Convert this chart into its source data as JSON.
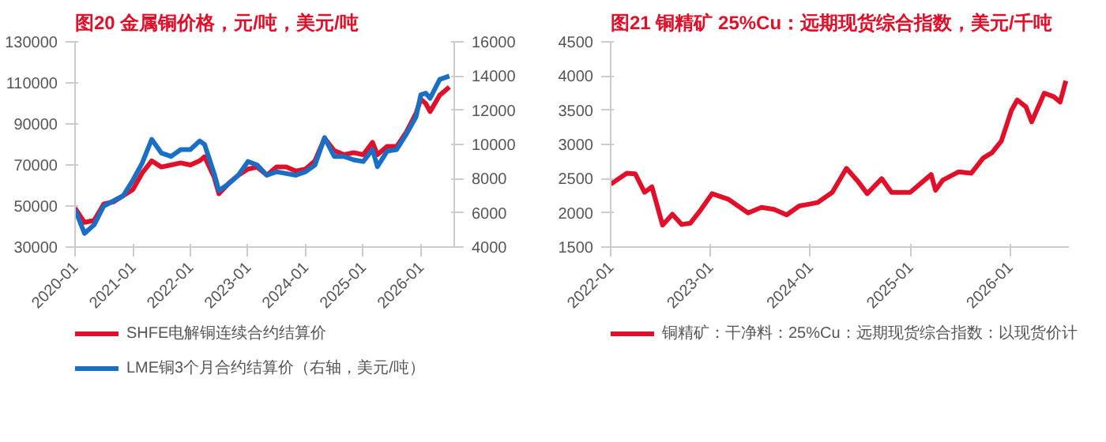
{
  "chart_data": [
    {
      "type": "line",
      "title": "图20  金属铜价格，元/吨，美元/吨",
      "legend": "bottom",
      "grid": false,
      "marker": "none",
      "line_style": "solid",
      "x": [
        "2020-01",
        "2020-03",
        "2020-05",
        "2020-07",
        "2020-09",
        "2020-11",
        "2021-01",
        "2021-03",
        "2021-05",
        "2021-07",
        "2021-09",
        "2021-11",
        "2022-01",
        "2022-03",
        "2022-04",
        "2022-06",
        "2022-07",
        "2022-09",
        "2022-11",
        "2023-01",
        "2023-03",
        "2023-05",
        "2023-07",
        "2023-09",
        "2023-11",
        "2024-01",
        "2024-03",
        "2024-05",
        "2024-07",
        "2024-09",
        "2024-11",
        "2025-01",
        "2025-03",
        "2025-04",
        "2025-06",
        "2025-08",
        "2025-10",
        "2025-12",
        "2026-01",
        "2026-02",
        "2026-03",
        "2026-05",
        "2026-07"
      ],
      "xlim": [
        "2020-01-01",
        "2026-08-01"
      ],
      "xticks": [
        "2020-01",
        "2021-01",
        "2022-01",
        "2023-01",
        "2024-01",
        "2025-01",
        "2026-01"
      ],
      "ylim": [
        30000,
        130000
      ],
      "yticks": [
        30000,
        50000,
        70000,
        90000,
        110000,
        130000
      ],
      "y2lim": [
        4000,
        16000
      ],
      "y2ticks": [
        4000,
        6000,
        8000,
        10000,
        12000,
        14000,
        16000
      ],
      "series": [
        {
          "name": "SHFE电解铜连续合约结算价",
          "color": "#e0102a",
          "values": [
            49000,
            42000,
            43000,
            51000,
            52000,
            55000,
            58000,
            66000,
            72000,
            69000,
            70000,
            71000,
            70000,
            72000,
            74000,
            64000,
            56000,
            61000,
            65000,
            68000,
            69000,
            65000,
            69000,
            69000,
            67000,
            68000,
            72000,
            83000,
            77000,
            75000,
            76000,
            75000,
            81000,
            75000,
            79000,
            79000,
            86000,
            95000,
            102000,
            100000,
            96000,
            104000,
            108000
          ]
        },
        {
          "name": "LME铜3个月合约结算价（右轴，美元/吨）",
          "color": "#1a6fc4",
          "axis": "y2",
          "values": [
            6200,
            4800,
            5300,
            6400,
            6700,
            7000,
            7900,
            8900,
            10300,
            9500,
            9300,
            9700,
            9700,
            10200,
            10000,
            8300,
            7300,
            7700,
            8200,
            9000,
            8800,
            8200,
            8400,
            8300,
            8200,
            8400,
            8800,
            10400,
            9300,
            9300,
            9100,
            9000,
            9700,
            8700,
            9600,
            9700,
            10600,
            11600,
            12900,
            13000,
            12700,
            13800,
            14000
          ]
        }
      ]
    },
    {
      "type": "line",
      "title": "图21  铜精矿 25%Cu：远期现货综合指数，美元/千吨",
      "legend": "bottom",
      "grid": false,
      "marker": "none",
      "line_style": "solid",
      "x": [
        "2022-01-01",
        "2022-03-01",
        "2022-04-01",
        "2022-05-05",
        "2022-06-01",
        "2022-07-10",
        "2022-08-15",
        "2022-09-18",
        "2022-10-20",
        "2022-11-28",
        "2023-01-07",
        "2023-03-07",
        "2023-05-19",
        "2023-07-07",
        "2023-08-22",
        "2023-10-07",
        "2023-11-22",
        "2024-01-28",
        "2024-03-22",
        "2024-05-13",
        "2024-06-22",
        "2024-07-28",
        "2024-09-19",
        "2024-10-25",
        "2025-01-01",
        "2025-03-19",
        "2025-04-04",
        "2025-05-01",
        "2025-06-28",
        "2025-08-13",
        "2025-09-25",
        "2025-10-28",
        "2025-12-01",
        "2026-01-07",
        "2026-01-28",
        "2026-03-01",
        "2026-03-22",
        "2026-05-07",
        "2026-06-10",
        "2026-07-04",
        "2026-07-25"
      ],
      "xlim": [
        "2022-01-01",
        "2026-08-05"
      ],
      "xticks": [
        "2022-01",
        "2023-01",
        "2024-01",
        "2025-01",
        "2026-01"
      ],
      "ylim": [
        1500,
        4500
      ],
      "yticks": [
        1500,
        2000,
        2500,
        3000,
        3500,
        4000,
        4500
      ],
      "series": [
        {
          "name": "铜精矿：干净料：25%Cu：远期现货综合指数：以现货价计",
          "color": "#e0102a",
          "values": [
            2420,
            2580,
            2570,
            2300,
            2380,
            1820,
            1980,
            1830,
            1850,
            2050,
            2280,
            2200,
            2000,
            2080,
            2050,
            1970,
            2100,
            2150,
            2300,
            2650,
            2470,
            2280,
            2500,
            2300,
            2300,
            2560,
            2330,
            2480,
            2600,
            2580,
            2800,
            2880,
            3050,
            3500,
            3650,
            3550,
            3330,
            3750,
            3700,
            3620,
            3930
          ]
        }
      ]
    }
  ]
}
